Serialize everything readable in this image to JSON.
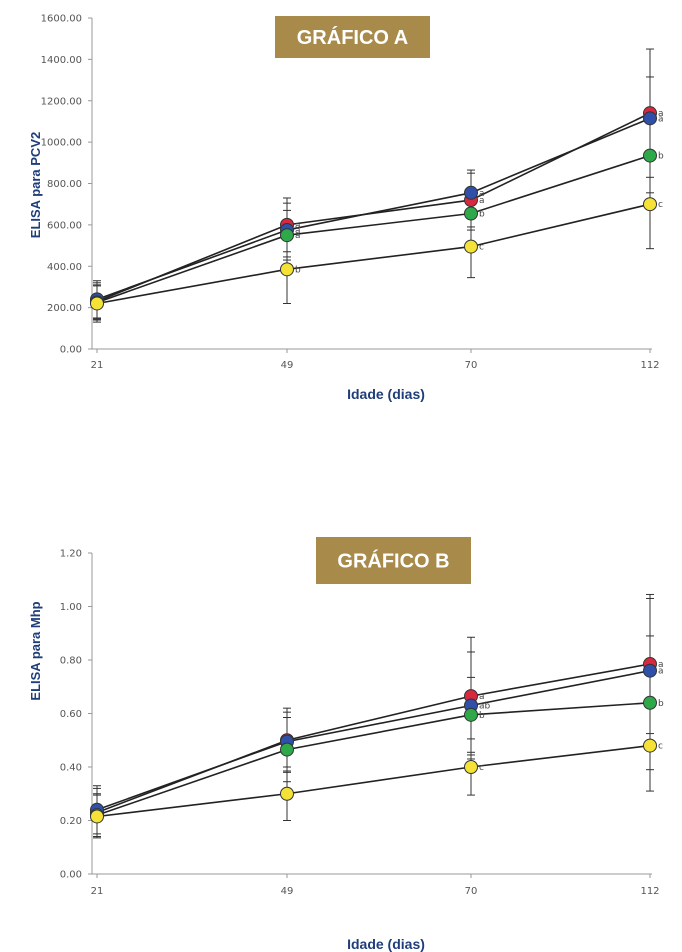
{
  "chart_data": [
    {
      "type": "line",
      "title": "GRÁFICO A",
      "xlabel": "Idade (dias)",
      "ylabel": "ELISA para PCV2",
      "categories": [
        "21",
        "49",
        "70",
        "112"
      ],
      "ylim": [
        0,
        1600
      ],
      "yticks": [
        "0.00",
        "200.00",
        "400.00",
        "600.00",
        "800.00",
        "1000.00",
        "1200.00",
        "1400.00",
        "1600.00"
      ],
      "grid": false,
      "series": [
        {
          "color": "#d9283e",
          "values": [
            230,
            600,
            720,
            1140
          ],
          "errors": [
            90,
            130,
            130,
            310
          ],
          "labels": [
            "",
            "a",
            "a",
            "a"
          ]
        },
        {
          "color": "#2f4fa8",
          "values": [
            240,
            575,
            755,
            1115
          ],
          "errors": [
            90,
            130,
            110,
            200
          ],
          "labels": [
            "",
            "a",
            "a",
            "a"
          ]
        },
        {
          "color": "#2fa84a",
          "values": [
            225,
            550,
            655,
            935
          ],
          "errors": [
            80,
            120,
            80,
            180
          ],
          "labels": [
            "",
            "a",
            "b",
            "b"
          ]
        },
        {
          "color": "#f5e236",
          "values": [
            220,
            385,
            495,
            700
          ],
          "errors": [
            90,
            165,
            150,
            215
          ],
          "labels": [
            "",
            "b",
            "c",
            "c"
          ]
        }
      ]
    },
    {
      "type": "line",
      "title": "GRÁFICO B",
      "xlabel": "Idade (dias)",
      "ylabel": "ELISA para Mhp",
      "categories": [
        "21",
        "49",
        "70",
        "112"
      ],
      "ylim": [
        0,
        1.2
      ],
      "yticks": [
        "0.00",
        "0.20",
        "0.40",
        "0.60",
        "0.80",
        "1.00",
        "1.20"
      ],
      "grid": false,
      "series": [
        {
          "color": "#d9283e",
          "values": [
            0.23,
            0.5,
            0.665,
            0.785
          ],
          "errors": [
            0.09,
            0.12,
            0.22,
            0.26
          ],
          "labels": [
            "",
            "",
            "a",
            "a"
          ]
        },
        {
          "color": "#2f4fa8",
          "values": [
            0.24,
            0.495,
            0.63,
            0.76
          ],
          "errors": [
            0.09,
            0.11,
            0.2,
            0.27
          ],
          "labels": [
            "",
            "",
            "ab",
            "a"
          ]
        },
        {
          "color": "#2fa84a",
          "values": [
            0.22,
            0.465,
            0.595,
            0.64
          ],
          "errors": [
            0.08,
            0.12,
            0.14,
            0.25
          ],
          "labels": [
            "",
            "",
            "b",
            "b"
          ]
        },
        {
          "color": "#f5e236",
          "values": [
            0.215,
            0.3,
            0.4,
            0.48
          ],
          "errors": [
            0.08,
            0.1,
            0.105,
            0.17
          ],
          "labels": [
            "",
            "",
            "c",
            "c"
          ]
        }
      ]
    }
  ],
  "theme": {
    "badge_color": "#a88a4a",
    "title_color": "#1f3d7a"
  }
}
